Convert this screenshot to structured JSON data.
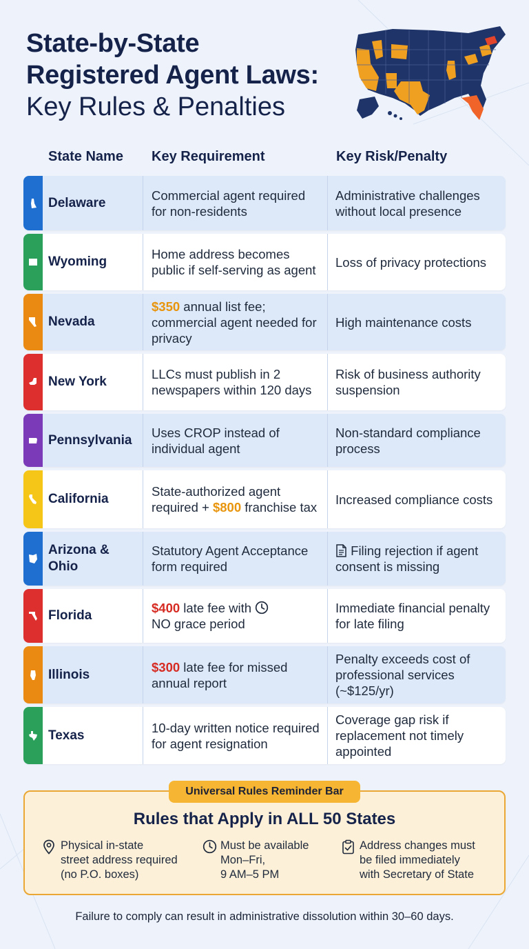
{
  "title": {
    "line1": "State-by-State",
    "line2": "Registered Agent Laws:",
    "line3": "Key Rules & Penalties"
  },
  "columns": {
    "state": "State Name",
    "requirement": "Key Requirement",
    "risk": "Key Risk/Penalty"
  },
  "rows": [
    {
      "state": "Delaware",
      "color": "#1f6fd1",
      "requirement": "Commercial agent required for non-residents",
      "risk": "Administrative challenges without local presence"
    },
    {
      "state": "Wyoming",
      "color": "#2aa05a",
      "requirement": "Home address becomes public if self-serving as agent",
      "risk": "Loss of privacy protections"
    },
    {
      "state": "Nevada",
      "color": "#ea8a12",
      "requirement_fee": "$350",
      "requirement_rest": " annual list fee; commercial agent needed for privacy",
      "risk": "High maintenance costs"
    },
    {
      "state": "New York",
      "color": "#de2f2f",
      "requirement": "LLCs must publish in 2 newspapers within 120 days",
      "risk": "Risk of business authority suspension"
    },
    {
      "state": "Pennsylvania",
      "color": "#7b3bb8",
      "requirement": "Uses CROP instead of individual agent",
      "risk": "Non-standard compliance process"
    },
    {
      "state": "California",
      "color": "#f5c518",
      "requirement_pre": "State-authorized agent required + ",
      "requirement_fee": "$800",
      "requirement_rest": " franchise tax",
      "risk": "Increased compliance costs"
    },
    {
      "state_line1": "Arizona &",
      "state_line2": "Ohio",
      "color": "#1f6fd1",
      "requirement": "Statutory Agent Acceptance form required",
      "risk": "Filing rejection if agent consent is missing",
      "risk_icon": "document-icon"
    },
    {
      "state": "Florida",
      "color": "#de2f2f",
      "requirement_fee": "$400",
      "requirement_rest": " late fee with",
      "requirement_icon": "clock-icon",
      "requirement_tail": "NO grace period",
      "risk": "Immediate financial penalty for late filing"
    },
    {
      "state": "Illinois",
      "color": "#ea8a12",
      "requirement_fee": "$300",
      "requirement_rest": " late fee for missed annual report",
      "risk": "Penalty exceeds cost of professional services (~$125/yr)"
    },
    {
      "state": "Texas",
      "color": "#2aa05a",
      "requirement": "10-day written notice required for agent resignation",
      "risk": "Coverage gap risk if replacement not timely appointed"
    }
  ],
  "reminder": {
    "tag": "Universal Rules Reminder Bar",
    "title": "Rules that Apply in ALL 50 States",
    "rules": [
      {
        "icon": "location-pin-icon",
        "line1": "Physical in-state",
        "line2": "street address required",
        "line3": "(no P.O. boxes)"
      },
      {
        "icon": "clock-icon",
        "line1": "Must be available",
        "line2": "Mon–Fri,",
        "line3": "9 AM–5 PM"
      },
      {
        "icon": "clipboard-check-icon",
        "line1": "Address changes must",
        "line2": "be filed immediately",
        "line3": "with Secretary of State"
      }
    ]
  },
  "footer": "Failure to comply can result in administrative dissolution within 30–60 days.",
  "colors": {
    "navy": "#15224a",
    "orange": "#e8950d",
    "red": "#d62b22",
    "row_blue": "#dde8f8",
    "reminder_bg": "#fdf0d8",
    "reminder_border": "#eaa733"
  }
}
